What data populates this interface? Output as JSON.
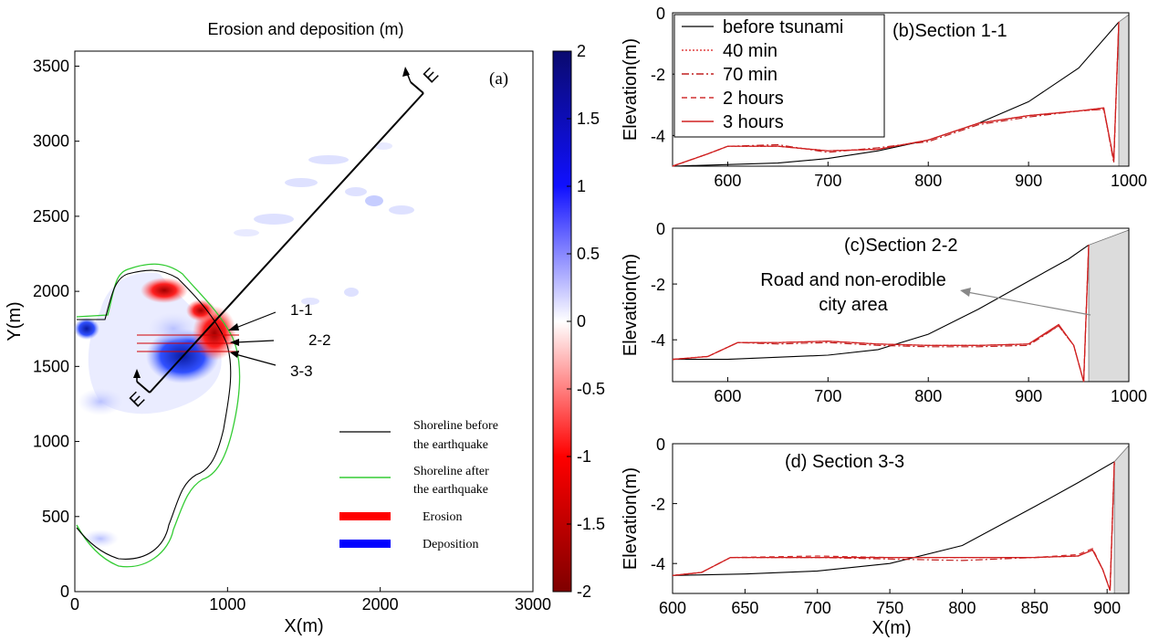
{
  "chart_data": [
    {
      "type": "heatmap",
      "title": "Erosion and deposition (m)",
      "panel_label": "(a)",
      "xlabel": "X(m)",
      "ylabel": "Y(m)",
      "xlim": [
        0,
        3000
      ],
      "ylim": [
        0,
        3600
      ],
      "xticks": [
        "0",
        "1000",
        "2000",
        "3000"
      ],
      "yticks": [
        "0",
        "500",
        "1000",
        "1500",
        "2000",
        "2500",
        "3000",
        "3500"
      ],
      "colorbar": {
        "range": [
          -2,
          2
        ],
        "ticks": [
          "2",
          "1.5",
          "1",
          "0.5",
          "0",
          "-0.5",
          "-1",
          "-1.5",
          "-2"
        ],
        "colors": {
          "low": "#7f0000",
          "mid": "#ffffff",
          "high": "#0a0a6e"
        }
      },
      "section_labels": [
        "1-1",
        "2-2",
        "3-3"
      ],
      "transect_labels": [
        "E",
        "E"
      ],
      "legend": [
        {
          "label_lines": [
            "Shoreline before",
            "the earthquake"
          ],
          "color": "#000000",
          "kind": "line"
        },
        {
          "label_lines": [
            "Shoreline after",
            "the earthquake"
          ],
          "color": "#33cc33",
          "kind": "line"
        },
        {
          "label_lines": [
            "Erosion"
          ],
          "color": "#ff0000",
          "kind": "bar"
        },
        {
          "label_lines": [
            "Deposition"
          ],
          "color": "#0000ff",
          "kind": "bar"
        }
      ]
    },
    {
      "type": "line",
      "title": "(b)Section 1-1",
      "ylabel": "Elevation(m)",
      "xlim": [
        545,
        1000
      ],
      "ylim": [
        -5,
        0
      ],
      "xticks": [
        "600",
        "700",
        "800",
        "900",
        "1000"
      ],
      "yticks": [
        "-4",
        "-2",
        "0"
      ],
      "legend": [
        "before tsunami",
        "40 min",
        "70 min",
        "2 hours",
        "3 hours"
      ],
      "series": [
        {
          "name": "before tsunami",
          "x": [
            545,
            650,
            700,
            750,
            800,
            850,
            900,
            950,
            990
          ],
          "y": [
            -5.0,
            -4.9,
            -4.75,
            -4.5,
            -4.15,
            -3.6,
            -2.9,
            -1.8,
            -0.3
          ]
        },
        {
          "name": "40 min",
          "x": [
            545,
            580,
            600,
            650,
            700,
            750,
            800,
            850,
            900,
            950,
            975,
            985,
            990
          ],
          "y": [
            -5.0,
            -4.6,
            -4.35,
            -4.35,
            -4.5,
            -4.45,
            -4.15,
            -3.6,
            -3.35,
            -3.2,
            -3.15,
            -4.8,
            -0.3
          ]
        },
        {
          "name": "70 min",
          "x": [
            545,
            580,
            600,
            650,
            700,
            750,
            800,
            850,
            900,
            950,
            975,
            985,
            990
          ],
          "y": [
            -5.0,
            -4.6,
            -4.35,
            -4.3,
            -4.55,
            -4.4,
            -4.2,
            -3.65,
            -3.4,
            -3.2,
            -3.1,
            -4.9,
            -0.3
          ]
        },
        {
          "name": "2 hours",
          "x": [
            545,
            580,
            600,
            650,
            700,
            750,
            800,
            850,
            900,
            950,
            975,
            985,
            990
          ],
          "y": [
            -5.0,
            -4.6,
            -4.35,
            -4.35,
            -4.5,
            -4.45,
            -4.15,
            -3.6,
            -3.35,
            -3.2,
            -3.15,
            -4.8,
            -0.3
          ]
        },
        {
          "name": "3 hours",
          "x": [
            545,
            580,
            600,
            650,
            700,
            750,
            800,
            850,
            900,
            950,
            975,
            985,
            990
          ],
          "y": [
            -5.0,
            -4.6,
            -4.35,
            -4.35,
            -4.5,
            -4.45,
            -4.15,
            -3.6,
            -3.35,
            -3.2,
            -3.1,
            -4.8,
            -0.3
          ]
        }
      ]
    },
    {
      "type": "line",
      "title": "(c)Section  2-2",
      "ylabel": "Elevation(m)",
      "xlim": [
        545,
        1000
      ],
      "ylim": [
        -5.5,
        0
      ],
      "xticks": [
        "600",
        "700",
        "800",
        "900",
        "1000"
      ],
      "yticks": [
        "-4",
        "-2",
        "0"
      ],
      "annotation": [
        "Road and non-erodible",
        "city area"
      ],
      "series": [
        {
          "name": "before tsunami",
          "x": [
            545,
            600,
            700,
            750,
            800,
            850,
            900,
            940,
            960
          ],
          "y": [
            -4.7,
            -4.7,
            -4.55,
            -4.35,
            -3.8,
            -2.9,
            -1.9,
            -1.1,
            -0.6
          ]
        },
        {
          "name": "40 min",
          "x": [
            545,
            580,
            610,
            650,
            700,
            750,
            800,
            850,
            900,
            930,
            945,
            955,
            960
          ],
          "y": [
            -4.7,
            -4.6,
            -4.1,
            -4.1,
            -4.05,
            -4.15,
            -4.2,
            -4.2,
            -4.15,
            -3.5,
            -4.2,
            -5.5,
            -0.6
          ]
        },
        {
          "name": "70 min",
          "x": [
            545,
            580,
            610,
            650,
            700,
            750,
            800,
            850,
            900,
            930,
            945,
            955,
            960
          ],
          "y": [
            -4.7,
            -4.6,
            -4.1,
            -4.15,
            -4.1,
            -4.2,
            -4.25,
            -4.25,
            -4.2,
            -3.5,
            -4.2,
            -5.5,
            -0.6
          ]
        },
        {
          "name": "2 hours",
          "x": [
            545,
            580,
            610,
            650,
            700,
            750,
            800,
            850,
            900,
            930,
            945,
            955,
            960
          ],
          "y": [
            -4.7,
            -4.6,
            -4.1,
            -4.1,
            -4.05,
            -4.15,
            -4.2,
            -4.2,
            -4.15,
            -3.5,
            -4.2,
            -5.5,
            -0.6
          ]
        },
        {
          "name": "3 hours",
          "x": [
            545,
            580,
            610,
            650,
            700,
            750,
            800,
            850,
            900,
            930,
            945,
            955,
            960
          ],
          "y": [
            -4.7,
            -4.6,
            -4.1,
            -4.1,
            -4.05,
            -4.15,
            -4.2,
            -4.2,
            -4.15,
            -3.45,
            -4.2,
            -5.5,
            -0.6
          ]
        }
      ]
    },
    {
      "type": "line",
      "title": "(d) Section 3-3",
      "ylabel": "Elevation(m)",
      "xlabel": "X(m)",
      "xlim": [
        600,
        915
      ],
      "ylim": [
        -5,
        0
      ],
      "xticks": [
        "600",
        "650",
        "700",
        "750",
        "800",
        "850",
        "900"
      ],
      "yticks": [
        "-4",
        "-2",
        "0"
      ],
      "series": [
        {
          "name": "before tsunami",
          "x": [
            600,
            650,
            700,
            750,
            800,
            850,
            880,
            905
          ],
          "y": [
            -4.4,
            -4.35,
            -4.25,
            -4.0,
            -3.4,
            -2.1,
            -1.3,
            -0.6
          ]
        },
        {
          "name": "40 min",
          "x": [
            600,
            620,
            640,
            700,
            750,
            800,
            850,
            880,
            890,
            897,
            902,
            905
          ],
          "y": [
            -4.4,
            -4.3,
            -3.8,
            -3.8,
            -3.8,
            -3.8,
            -3.8,
            -3.75,
            -3.55,
            -4.2,
            -4.9,
            -0.6
          ]
        },
        {
          "name": "70 min",
          "x": [
            600,
            620,
            640,
            700,
            750,
            800,
            850,
            880,
            890,
            897,
            902,
            905
          ],
          "y": [
            -4.4,
            -4.3,
            -3.8,
            -3.8,
            -3.85,
            -3.9,
            -3.8,
            -3.75,
            -3.55,
            -4.2,
            -4.9,
            -0.6
          ]
        },
        {
          "name": "2 hours",
          "x": [
            600,
            620,
            640,
            700,
            750,
            800,
            850,
            880,
            890,
            897,
            902,
            905
          ],
          "y": [
            -4.4,
            -4.3,
            -3.8,
            -3.75,
            -3.8,
            -3.8,
            -3.8,
            -3.7,
            -3.5,
            -4.2,
            -4.9,
            -0.6
          ]
        },
        {
          "name": "3 hours",
          "x": [
            600,
            620,
            640,
            700,
            750,
            800,
            850,
            880,
            890,
            897,
            902,
            905
          ],
          "y": [
            -4.4,
            -4.3,
            -3.8,
            -3.8,
            -3.8,
            -3.8,
            -3.8,
            -3.75,
            -3.55,
            -4.2,
            -4.9,
            -0.6
          ]
        }
      ]
    }
  ]
}
